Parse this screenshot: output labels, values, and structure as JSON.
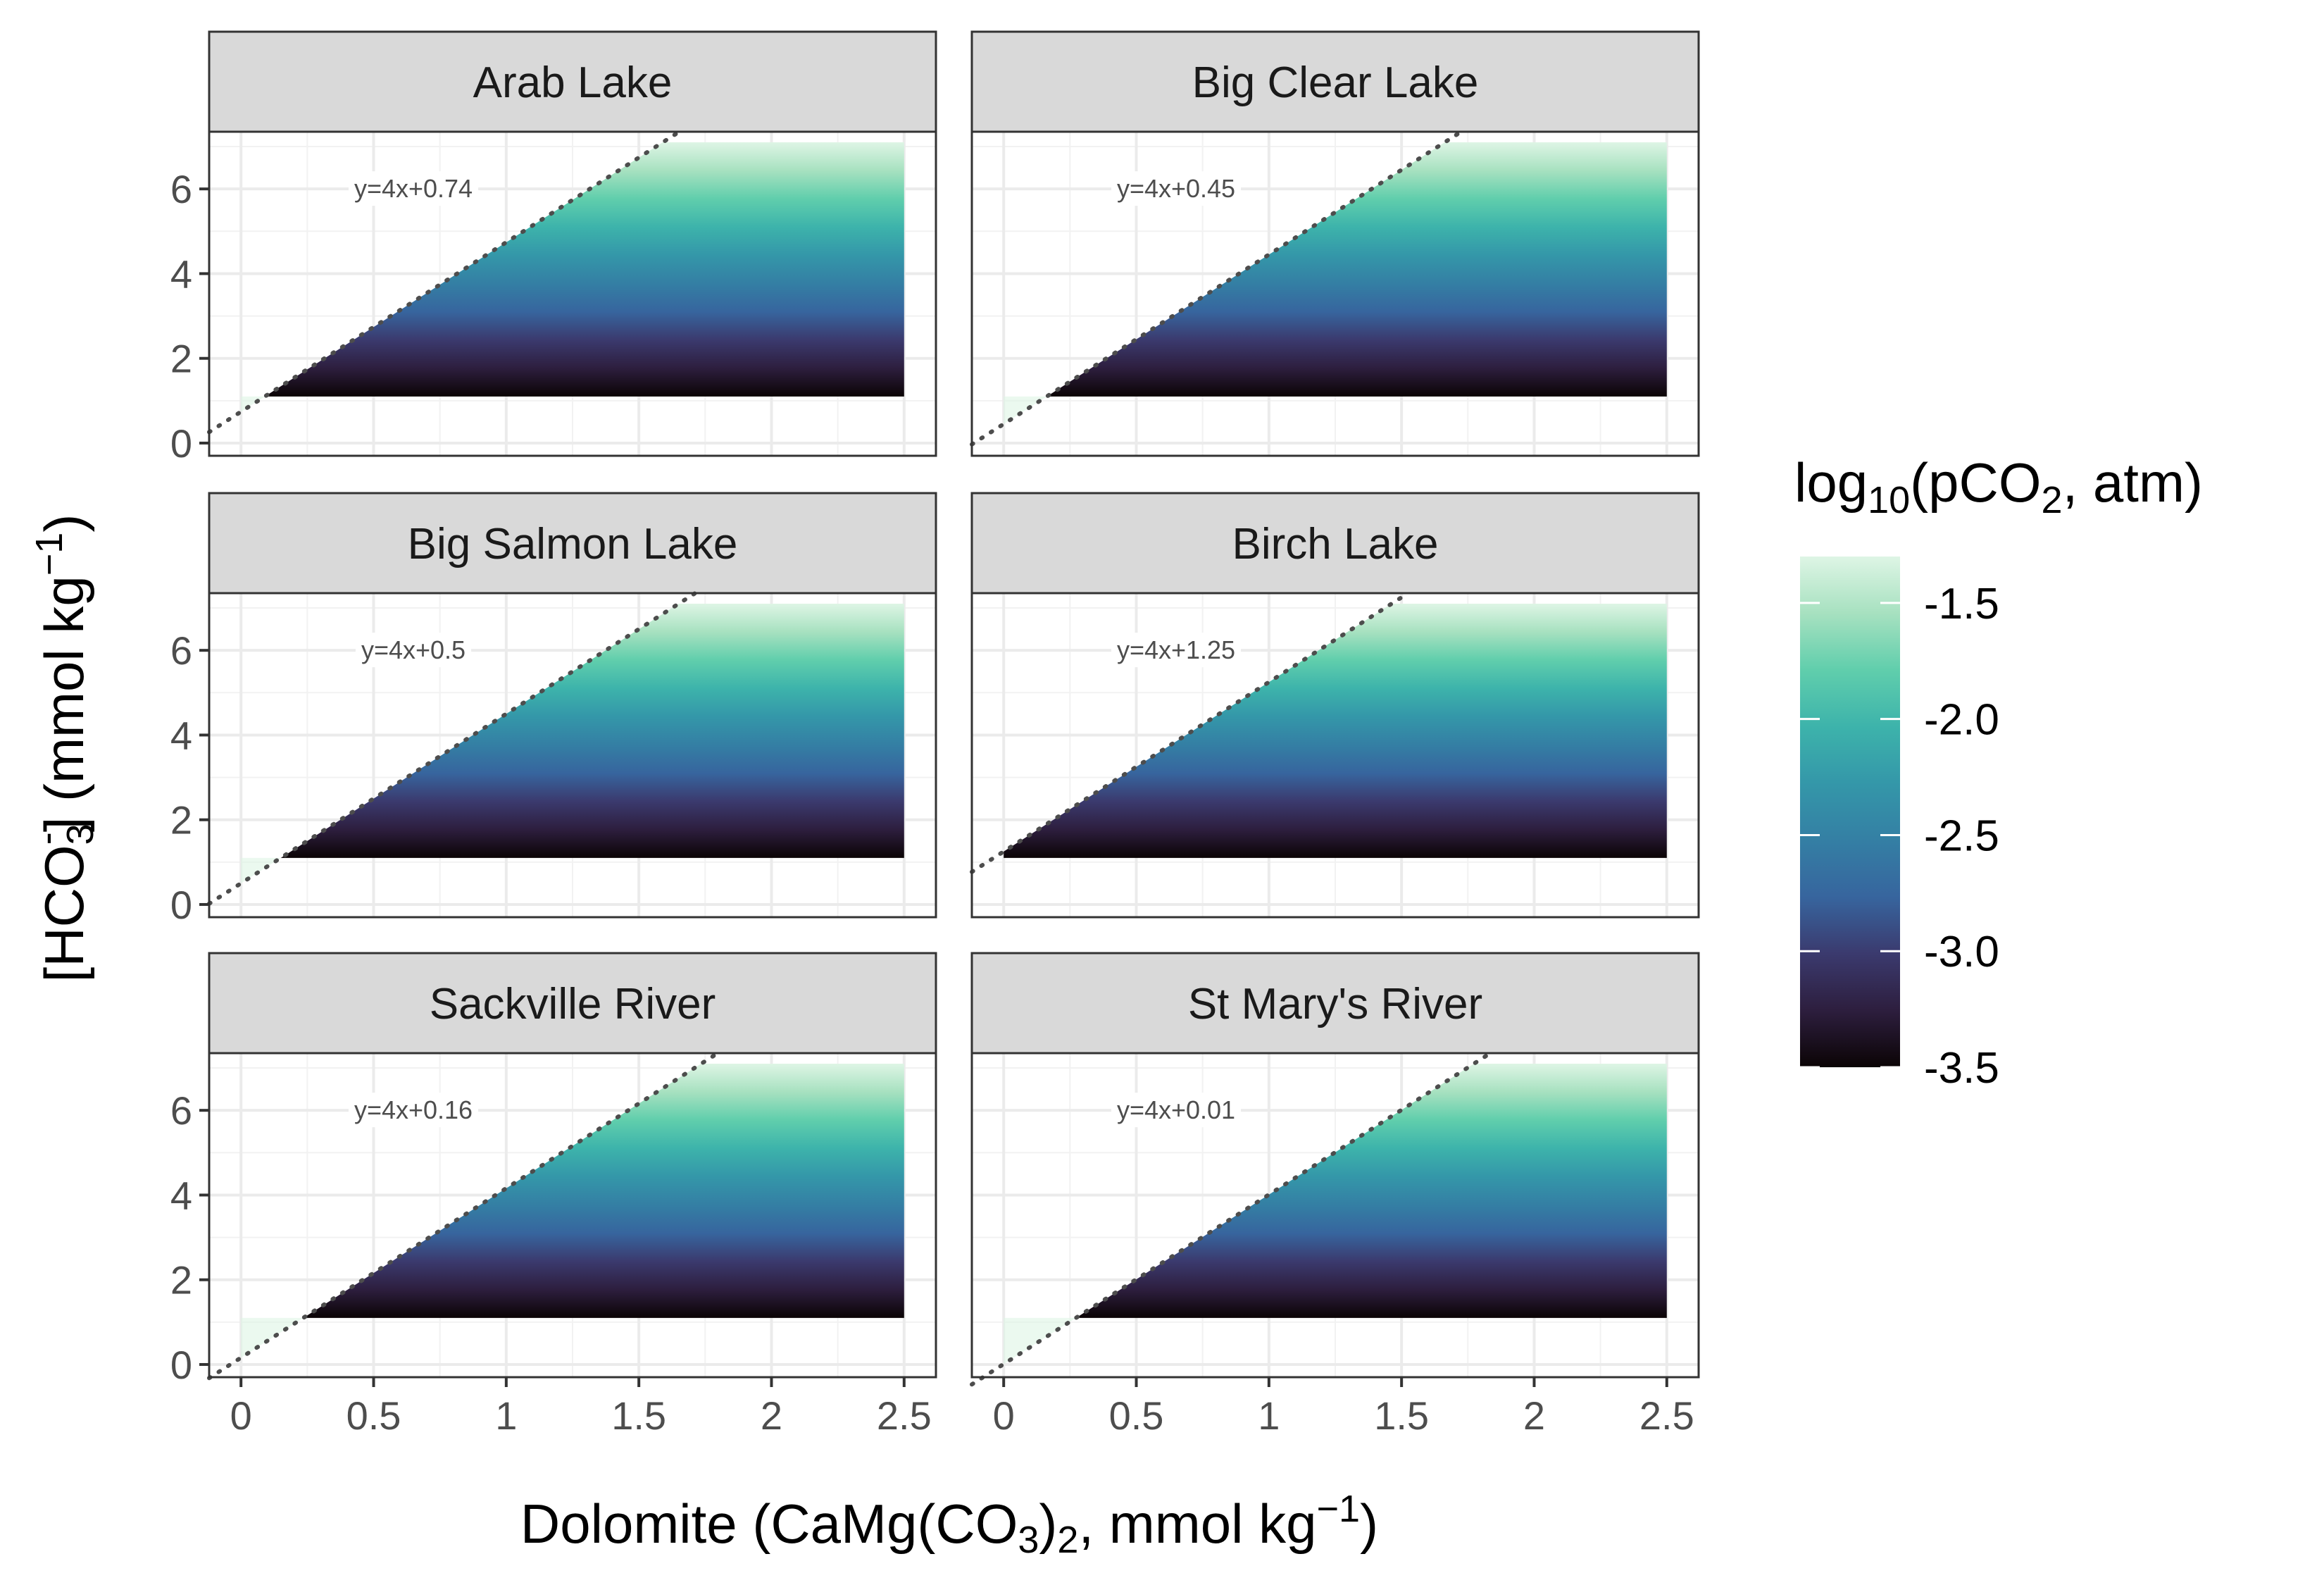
{
  "chart_data": {
    "type": "heatmap",
    "xlabel": {
      "main": "Dolomite (CaMg(CO",
      "sub": "3",
      "after_sub": ")",
      "sub2": "2",
      "tail": ", mmol kg",
      "sup": "−1",
      "close": ")"
    },
    "ylabel": {
      "main": "[HCO",
      "sub": "3",
      "sup": "-",
      "tail": "] (mmol kg",
      "sup2": "−1",
      "close": ")"
    },
    "xlim": [
      -0.12,
      2.62
    ],
    "ylim": [
      -0.3,
      7.35
    ],
    "x_ticks": [
      0,
      0.5,
      1,
      1.5,
      2,
      2.5
    ],
    "x_tick_labels": [
      "0",
      "0.5",
      "1",
      "1.5",
      "2",
      "2.5"
    ],
    "y_ticks": [
      0,
      2,
      4,
      6
    ],
    "y_tick_labels": [
      "0",
      "2",
      "4",
      "6"
    ],
    "grid": true,
    "fill_region": {
      "x_max": 2.5,
      "y_min": 1.1,
      "y_max": 7.1
    },
    "legend": {
      "title": {
        "main": "log",
        "sub": "10",
        "mid": "(pCO",
        "sub2": "2",
        "tail": ", atm)"
      },
      "range": [
        -3.5,
        -1.3
      ],
      "ticks": [
        -1.5,
        -2.0,
        -2.5,
        -3.0,
        -3.5
      ],
      "tick_labels": [
        "-1.5",
        "-2.0",
        "-2.5",
        "-3.0",
        "-3.5"
      ],
      "placement": "right",
      "colors": [
        "#0b0405",
        "#2d1e3e",
        "#3b3a6e",
        "#37659e",
        "#347fa4",
        "#3497a9",
        "#3db3ab",
        "#60ceac",
        "#a7e1c0",
        "#def5e5"
      ]
    },
    "panels": [
      {
        "name": "Arab Lake",
        "slope": 4,
        "intercept": 0.74,
        "equation": "y=4x+0.74"
      },
      {
        "name": "Big Clear Lake",
        "slope": 4,
        "intercept": 0.45,
        "equation": "y=4x+0.45"
      },
      {
        "name": "Big Salmon Lake",
        "slope": 4,
        "intercept": 0.5,
        "equation": "y=4x+0.5"
      },
      {
        "name": "Birch Lake",
        "slope": 4,
        "intercept": 1.25,
        "equation": "y=4x+1.25"
      },
      {
        "name": "Sackville River",
        "slope": 4,
        "intercept": 0.16,
        "equation": "y=4x+0.16"
      },
      {
        "name": "St Mary's River",
        "slope": 4,
        "intercept": 0.01,
        "equation": "y=4x+0.01"
      }
    ]
  }
}
